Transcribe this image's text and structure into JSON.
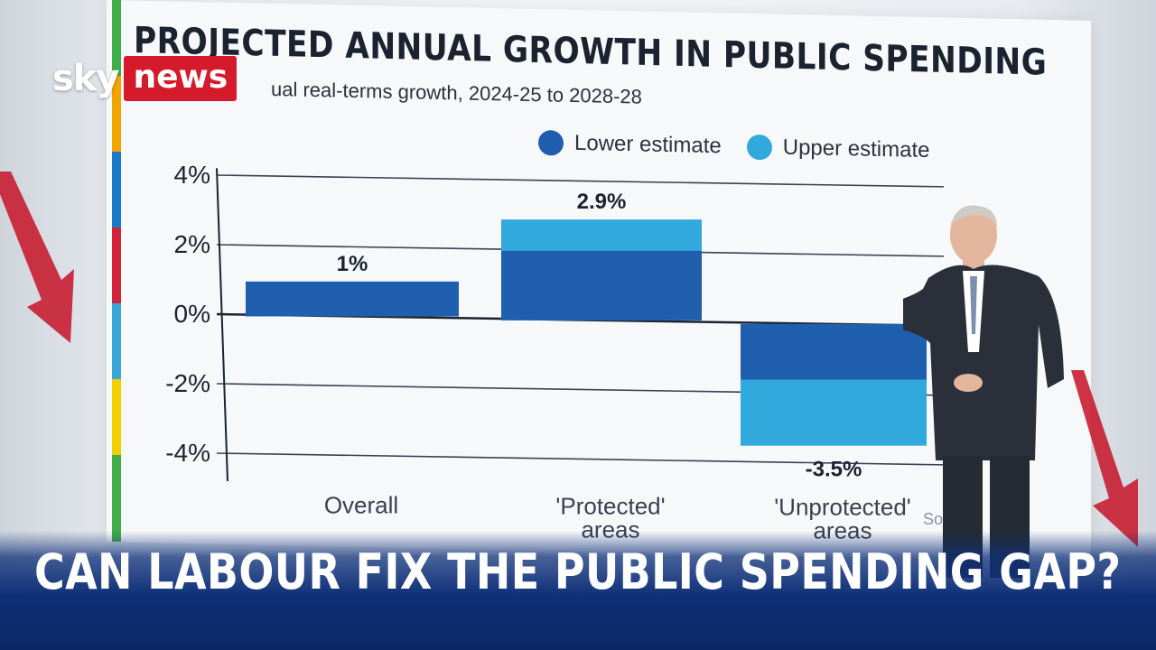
{
  "broadcast": {
    "logo_sky": "sky",
    "logo_news": "news",
    "headline": "CAN LABOUR FIX THE PUBLIC SPENDING GAP?",
    "colors": {
      "news_red": "#d51a2b",
      "banner_blue": "#0e2f78"
    }
  },
  "chart_data": {
    "type": "bar",
    "title": "PROJECTED ANNUAL GROWTH IN PUBLIC SPENDING",
    "subtitle": "ual real-terms growth, 2024-25 to 2028-28",
    "categories": [
      "Overall",
      "'Protected' areas",
      "'Unprotected' areas"
    ],
    "category_lines": [
      [
        "Overall"
      ],
      [
        "'Protected'",
        "areas"
      ],
      [
        "'Unprotected'",
        "areas"
      ]
    ],
    "series": [
      {
        "name": "Lower estimate",
        "color": "#1f5fae",
        "values": [
          1.0,
          2.0,
          -1.6
        ]
      },
      {
        "name": "Upper estimate",
        "color": "#31a9dd",
        "values": [
          1.0,
          2.9,
          -3.5
        ]
      }
    ],
    "data_labels": [
      "1%",
      "2.9%",
      "-3.5%"
    ],
    "y_ticks": [
      4,
      2,
      0,
      -2,
      -4
    ],
    "y_tick_labels": [
      "4%",
      "2%",
      "0%",
      "-2%",
      "-4%"
    ],
    "ylim": [
      -5,
      4
    ],
    "grid": true,
    "legend_position": "top-right",
    "source_text": "Sou      S"
  }
}
